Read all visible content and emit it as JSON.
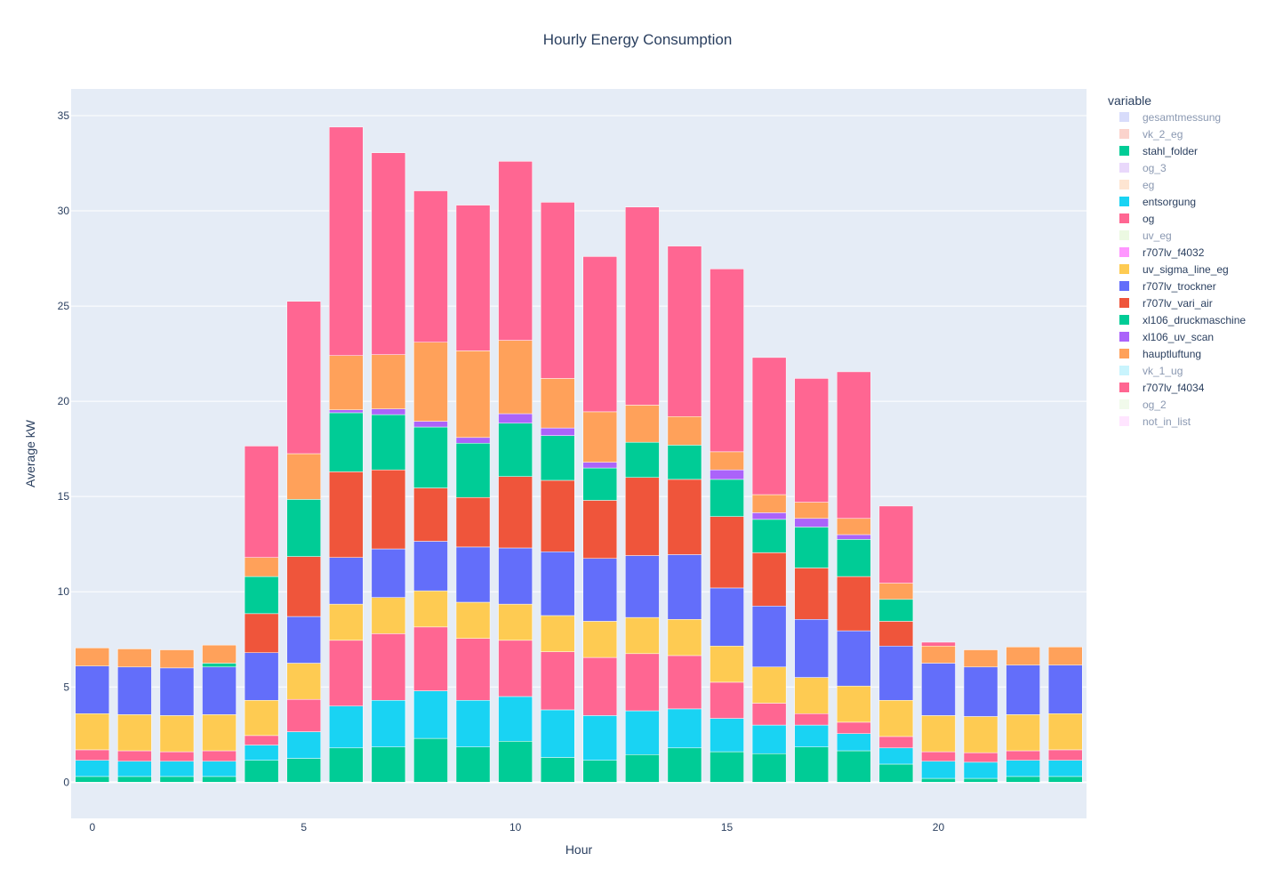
{
  "chart_data": {
    "type": "bar",
    "barmode": "stack",
    "title": "Hourly Energy Consumption",
    "xlabel": "Hour",
    "ylabel": "Average kW",
    "xlim": [
      -0.5,
      23.5
    ],
    "ylim": [
      -1.9,
      36.4
    ],
    "x_ticks": [
      0,
      5,
      10,
      15,
      20
    ],
    "y_ticks": [
      0,
      5,
      10,
      15,
      20,
      25,
      30,
      35
    ],
    "grid": true,
    "legend_title": "variable",
    "legend_position": "right",
    "plot_background": "#E5ECF6",
    "categories": [
      0,
      1,
      2,
      3,
      4,
      5,
      6,
      7,
      8,
      9,
      10,
      11,
      12,
      13,
      14,
      15,
      16,
      17,
      18,
      19,
      20,
      21,
      22,
      23
    ],
    "series": [
      {
        "name": "gesamtmessung",
        "color": "#B2B9F8",
        "visible": false,
        "values": null
      },
      {
        "name": "vk_2_eg",
        "color": "#F7A899",
        "visible": false,
        "values": null
      },
      {
        "name": "stahl_folder",
        "color": "#00CC96",
        "visible": true,
        "values": [
          0.3,
          0.3,
          0.3,
          0.3,
          1.15,
          1.25,
          1.8,
          1.85,
          2.3,
          1.85,
          2.15,
          1.3,
          1.15,
          1.45,
          1.8,
          1.6,
          1.5,
          1.85,
          1.65,
          0.95,
          0.2,
          0.2,
          0.3,
          0.3
        ]
      },
      {
        "name": "og_3",
        "color": "#D3B1F7",
        "visible": false,
        "values": null
      },
      {
        "name": "eg",
        "color": "#FECBA6",
        "visible": false,
        "values": null
      },
      {
        "name": "entsorgung",
        "color": "#19D3F3",
        "visible": true,
        "values": [
          0.85,
          0.8,
          0.8,
          0.8,
          0.8,
          1.4,
          2.2,
          2.45,
          2.5,
          2.45,
          2.35,
          2.5,
          2.35,
          2.3,
          2.05,
          1.75,
          1.5,
          1.15,
          0.9,
          0.85,
          0.9,
          0.85,
          0.85,
          0.85
        ]
      },
      {
        "name": "og",
        "color": "#FF6692",
        "visible": true,
        "values": [
          0.55,
          0.55,
          0.5,
          0.55,
          0.5,
          1.7,
          3.45,
          3.5,
          3.35,
          3.25,
          2.95,
          3.05,
          3.05,
          3.0,
          2.8,
          1.9,
          1.15,
          0.6,
          0.6,
          0.6,
          0.5,
          0.5,
          0.5,
          0.55
        ]
      },
      {
        "name": "uv_eg",
        "color": "#D9F3C6",
        "visible": false,
        "values": null
      },
      {
        "name": "r707lv_f4032",
        "color": "#FF97FF",
        "visible": true,
        "values": [
          0,
          0,
          0,
          0,
          0,
          0,
          0,
          0,
          0,
          0,
          0,
          0,
          0,
          0,
          0,
          0,
          0,
          0,
          0,
          0,
          0,
          0,
          0,
          0
        ]
      },
      {
        "name": "uv_sigma_line_eg",
        "color": "#FECB52",
        "visible": true,
        "values": [
          1.9,
          1.9,
          1.9,
          1.9,
          1.85,
          1.9,
          1.9,
          1.9,
          1.9,
          1.9,
          1.9,
          1.9,
          1.9,
          1.9,
          1.9,
          1.9,
          1.9,
          1.9,
          1.9,
          1.9,
          1.9,
          1.9,
          1.9,
          1.9
        ]
      },
      {
        "name": "r707lv_trockner",
        "color": "#636EFA",
        "visible": true,
        "values": [
          2.5,
          2.5,
          2.5,
          2.5,
          2.5,
          2.45,
          2.45,
          2.55,
          2.6,
          2.9,
          2.95,
          3.35,
          3.3,
          3.25,
          3.4,
          3.05,
          3.2,
          3.05,
          2.9,
          2.85,
          2.75,
          2.6,
          2.6,
          2.55
        ]
      },
      {
        "name": "r707lv_vari_air",
        "color": "#EF553B",
        "visible": true,
        "values": [
          0,
          0,
          0,
          0,
          2.05,
          3.15,
          4.5,
          4.15,
          2.8,
          2.6,
          3.75,
          3.75,
          3.05,
          4.1,
          3.95,
          3.75,
          2.8,
          2.7,
          2.85,
          1.3,
          0,
          0,
          0,
          0
        ]
      },
      {
        "name": "xl106_druckmaschine",
        "color": "#00CC96",
        "visible": true,
        "values": [
          0,
          0,
          0,
          0.2,
          1.95,
          3.0,
          3.1,
          2.9,
          3.2,
          2.85,
          2.8,
          2.35,
          1.7,
          1.85,
          1.8,
          1.95,
          1.75,
          2.15,
          1.95,
          1.15,
          0,
          0,
          0,
          0
        ]
      },
      {
        "name": "xl106_uv_scan",
        "color": "#AB63FA",
        "visible": true,
        "values": [
          0,
          0,
          0,
          0,
          0,
          0,
          0.15,
          0.3,
          0.3,
          0.3,
          0.5,
          0.4,
          0.3,
          0,
          0,
          0.5,
          0.35,
          0.45,
          0.25,
          0,
          0,
          0,
          0,
          0
        ]
      },
      {
        "name": "hauptluftung",
        "color": "#FFA15A",
        "visible": true,
        "values": [
          0.95,
          0.95,
          0.95,
          0.95,
          1.0,
          2.4,
          2.85,
          2.85,
          4.15,
          4.55,
          3.85,
          2.6,
          2.65,
          1.95,
          1.5,
          0.95,
          0.95,
          0.85,
          0.85,
          0.85,
          0.9,
          0.9,
          0.95,
          0.95
        ]
      },
      {
        "name": "vk_1_ug",
        "color": "#94EAFB",
        "visible": false,
        "values": null
      },
      {
        "name": "r707lv_f4034",
        "color": "#FF6692",
        "visible": true,
        "values": [
          0,
          0,
          0,
          0,
          5.85,
          8.0,
          12.0,
          10.6,
          7.95,
          7.65,
          9.4,
          9.25,
          8.15,
          10.4,
          8.95,
          9.6,
          7.2,
          6.5,
          7.7,
          4.05,
          0.2,
          0,
          0,
          0
        ]
      },
      {
        "name": "og_2",
        "color": "#E4F6D7",
        "visible": false,
        "values": null
      },
      {
        "name": "not_in_list",
        "color": "#FFCBFF",
        "visible": false,
        "values": null
      }
    ]
  }
}
